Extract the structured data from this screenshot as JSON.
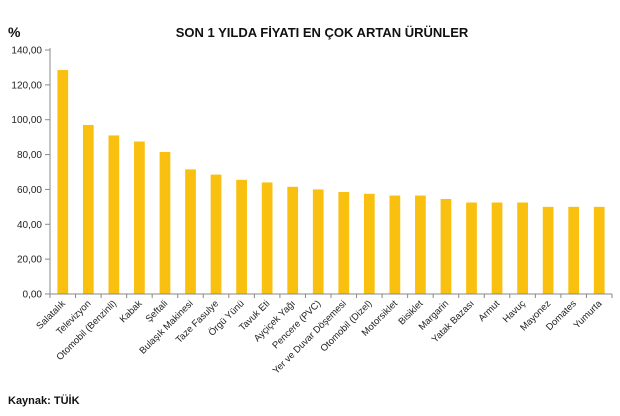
{
  "chart_data": {
    "type": "bar",
    "title": "SON 1 YILDA FİYATI EN ÇOK ARTAN ÜRÜNLER",
    "ylabel": "%",
    "source": "Kaynak: TÜİK",
    "ylim": [
      0,
      140
    ],
    "ytick_step": 20,
    "y_tick_labels": [
      "0,00",
      "20,00",
      "40,00",
      "60,00",
      "80,00",
      "100,00",
      "120,00",
      "140,00"
    ],
    "grid": false,
    "legend": "none",
    "bar_color": "#F9C00F",
    "categories": [
      "Salatalık",
      "Televizyon",
      "Otomobil (Benzinli)",
      "Kabak",
      "Şeftali",
      "Bulaşık Makinesi",
      "Taze Fasulye",
      "Örgü Yünü",
      "Tavuk Eti",
      "Ayçiçek Yağı",
      "Pencere (PVC)",
      "Yer ve Duvar Döşemesi",
      "Otomobil (Dizel)",
      "Motorsiklet",
      "Bisiklet",
      "Margarin",
      "Yatak Bazası",
      "Armut",
      "Havuç",
      "Mayonez",
      "Domates",
      "Yumurta"
    ],
    "values": [
      128.5,
      97.0,
      91.0,
      87.5,
      81.5,
      71.5,
      68.5,
      65.5,
      64.0,
      61.5,
      60.0,
      58.5,
      57.5,
      56.5,
      56.5,
      54.5,
      52.5,
      52.5,
      52.5,
      50.0,
      50.0,
      50.0
    ]
  }
}
